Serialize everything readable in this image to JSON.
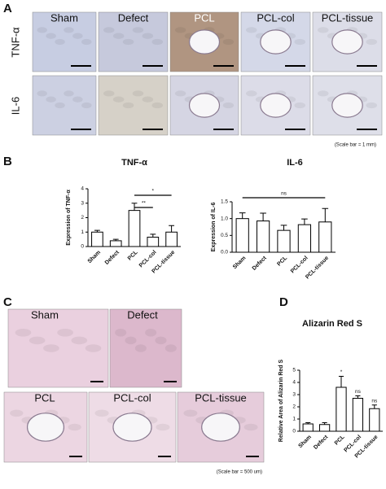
{
  "panel_labels": [
    "A",
    "B",
    "C",
    "D"
  ],
  "panel_a": {
    "columns": [
      "Sham",
      "Defect",
      "PCL",
      "PCL-col",
      "PCL-tissue"
    ],
    "rows": [
      "TNF-α",
      "IL-6"
    ],
    "scale_note": "(Scale bar = 1 mm)"
  },
  "panel_c": {
    "images": [
      "Sham",
      "Defect",
      "PCL",
      "PCL-col",
      "PCL-tissue"
    ],
    "scale_note": "(Scale bar = 500 um)"
  },
  "chart_data": [
    {
      "type": "bar",
      "title": "TNF-α",
      "y_label": "Expression of TNF-α",
      "categories": [
        "Sham",
        "Defect",
        "PCL",
        "PCL-col",
        "PCL-tissue"
      ],
      "values": [
        1.0,
        0.4,
        2.5,
        0.65,
        1.0
      ],
      "errors": [
        0.12,
        0.1,
        0.5,
        0.2,
        0.45
      ],
      "color": "#ffffff",
      "ylim": [
        0,
        4
      ],
      "yticks": [
        0,
        1,
        2,
        3,
        4
      ],
      "annotations": [
        "*",
        "**"
      ]
    },
    {
      "type": "bar",
      "title": "IL-6",
      "y_label": "Expression of IL-6",
      "categories": [
        "Sham",
        "Defect",
        "PCL",
        "PCL-col",
        "PCL-tissue"
      ],
      "values": [
        1.0,
        0.93,
        0.65,
        0.82,
        0.9
      ],
      "errors": [
        0.17,
        0.23,
        0.15,
        0.17,
        0.4
      ],
      "color": "#ffffff",
      "ylim": [
        0,
        1.5
      ],
      "yticks": [
        {
          "value": 0,
          "label": "0.0"
        },
        0.5,
        {
          "value": 1,
          "label": "1.0"
        },
        1.5
      ],
      "annotations": [
        "ns"
      ]
    },
    {
      "type": "bar",
      "title": "Alizarin Red S",
      "y_label": "Relative Area of Alizarin Red S",
      "categories": [
        "Sham",
        "Defect",
        "PCL",
        "PCL-col",
        "PCL-tissue"
      ],
      "values": [
        0.6,
        0.55,
        3.6,
        2.7,
        1.85
      ],
      "errors": [
        0.1,
        0.15,
        0.9,
        0.2,
        0.3
      ],
      "color": "#ffffff",
      "ylim": [
        0,
        5
      ],
      "yticks": [
        0,
        1,
        2,
        3,
        4,
        5
      ],
      "annotations": [
        "*",
        "ns",
        "ns"
      ]
    }
  ]
}
